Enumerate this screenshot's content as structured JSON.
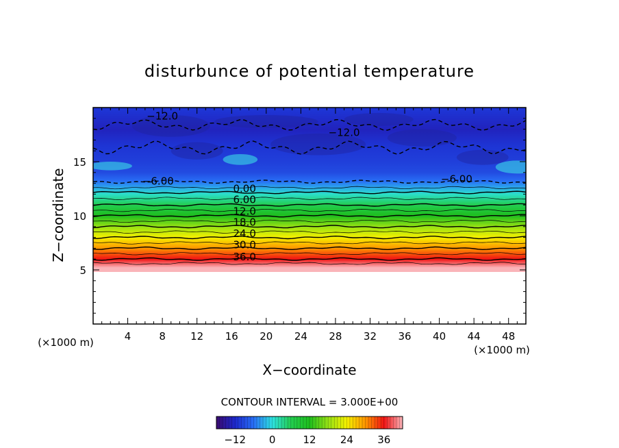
{
  "chart_data": {
    "type": "contour",
    "title": "disturbunce of potential temperature",
    "xlabel": "X−coordinate",
    "ylabel": "Z−coordinate",
    "x_unit": "(×1000 m)",
    "y_unit": "(×1000 m)",
    "xlim": [
      0,
      50
    ],
    "ylim": [
      0,
      20
    ],
    "x_ticks": [
      "4",
      "8",
      "12",
      "16",
      "20",
      "24",
      "28",
      "32",
      "36",
      "40",
      "44",
      "48"
    ],
    "y_ticks": [
      "5",
      "10",
      "15"
    ],
    "contour_interval_text": "CONTOUR INTERVAL = 3.000E+00",
    "colorbar_ticks": [
      "−12",
      "0",
      "12",
      "24",
      "36"
    ],
    "colorbar_range": [
      -18,
      42
    ],
    "contour_labels": [
      "−12.0",
      "−12.0",
      "−6.00",
      "−6.00",
      "0.00",
      "6.00",
      "12.0",
      "18.0",
      "24.0",
      "30.0",
      "36.0"
    ],
    "profile": {
      "z_blank_below": 5.2,
      "z_levels": [
        5.2,
        6.0,
        7.0,
        8.0,
        9.0,
        10.0,
        11.0,
        12.0,
        12.6,
        13.2,
        14.0,
        15.0,
        16.5,
        18.0,
        19.7
      ],
      "theta_values": [
        42,
        36,
        30,
        24,
        18,
        12,
        6,
        1,
        -3,
        -6,
        -9,
        -10,
        -11,
        -13,
        -11
      ]
    },
    "colors": {
      "deep_blue": "#1a2fd6",
      "cyan": "#2fe0e0",
      "green": "#21c221",
      "yellow": "#f2f200",
      "orange": "#ff9900",
      "red": "#f51616",
      "pink": "#f7a0a0"
    }
  }
}
